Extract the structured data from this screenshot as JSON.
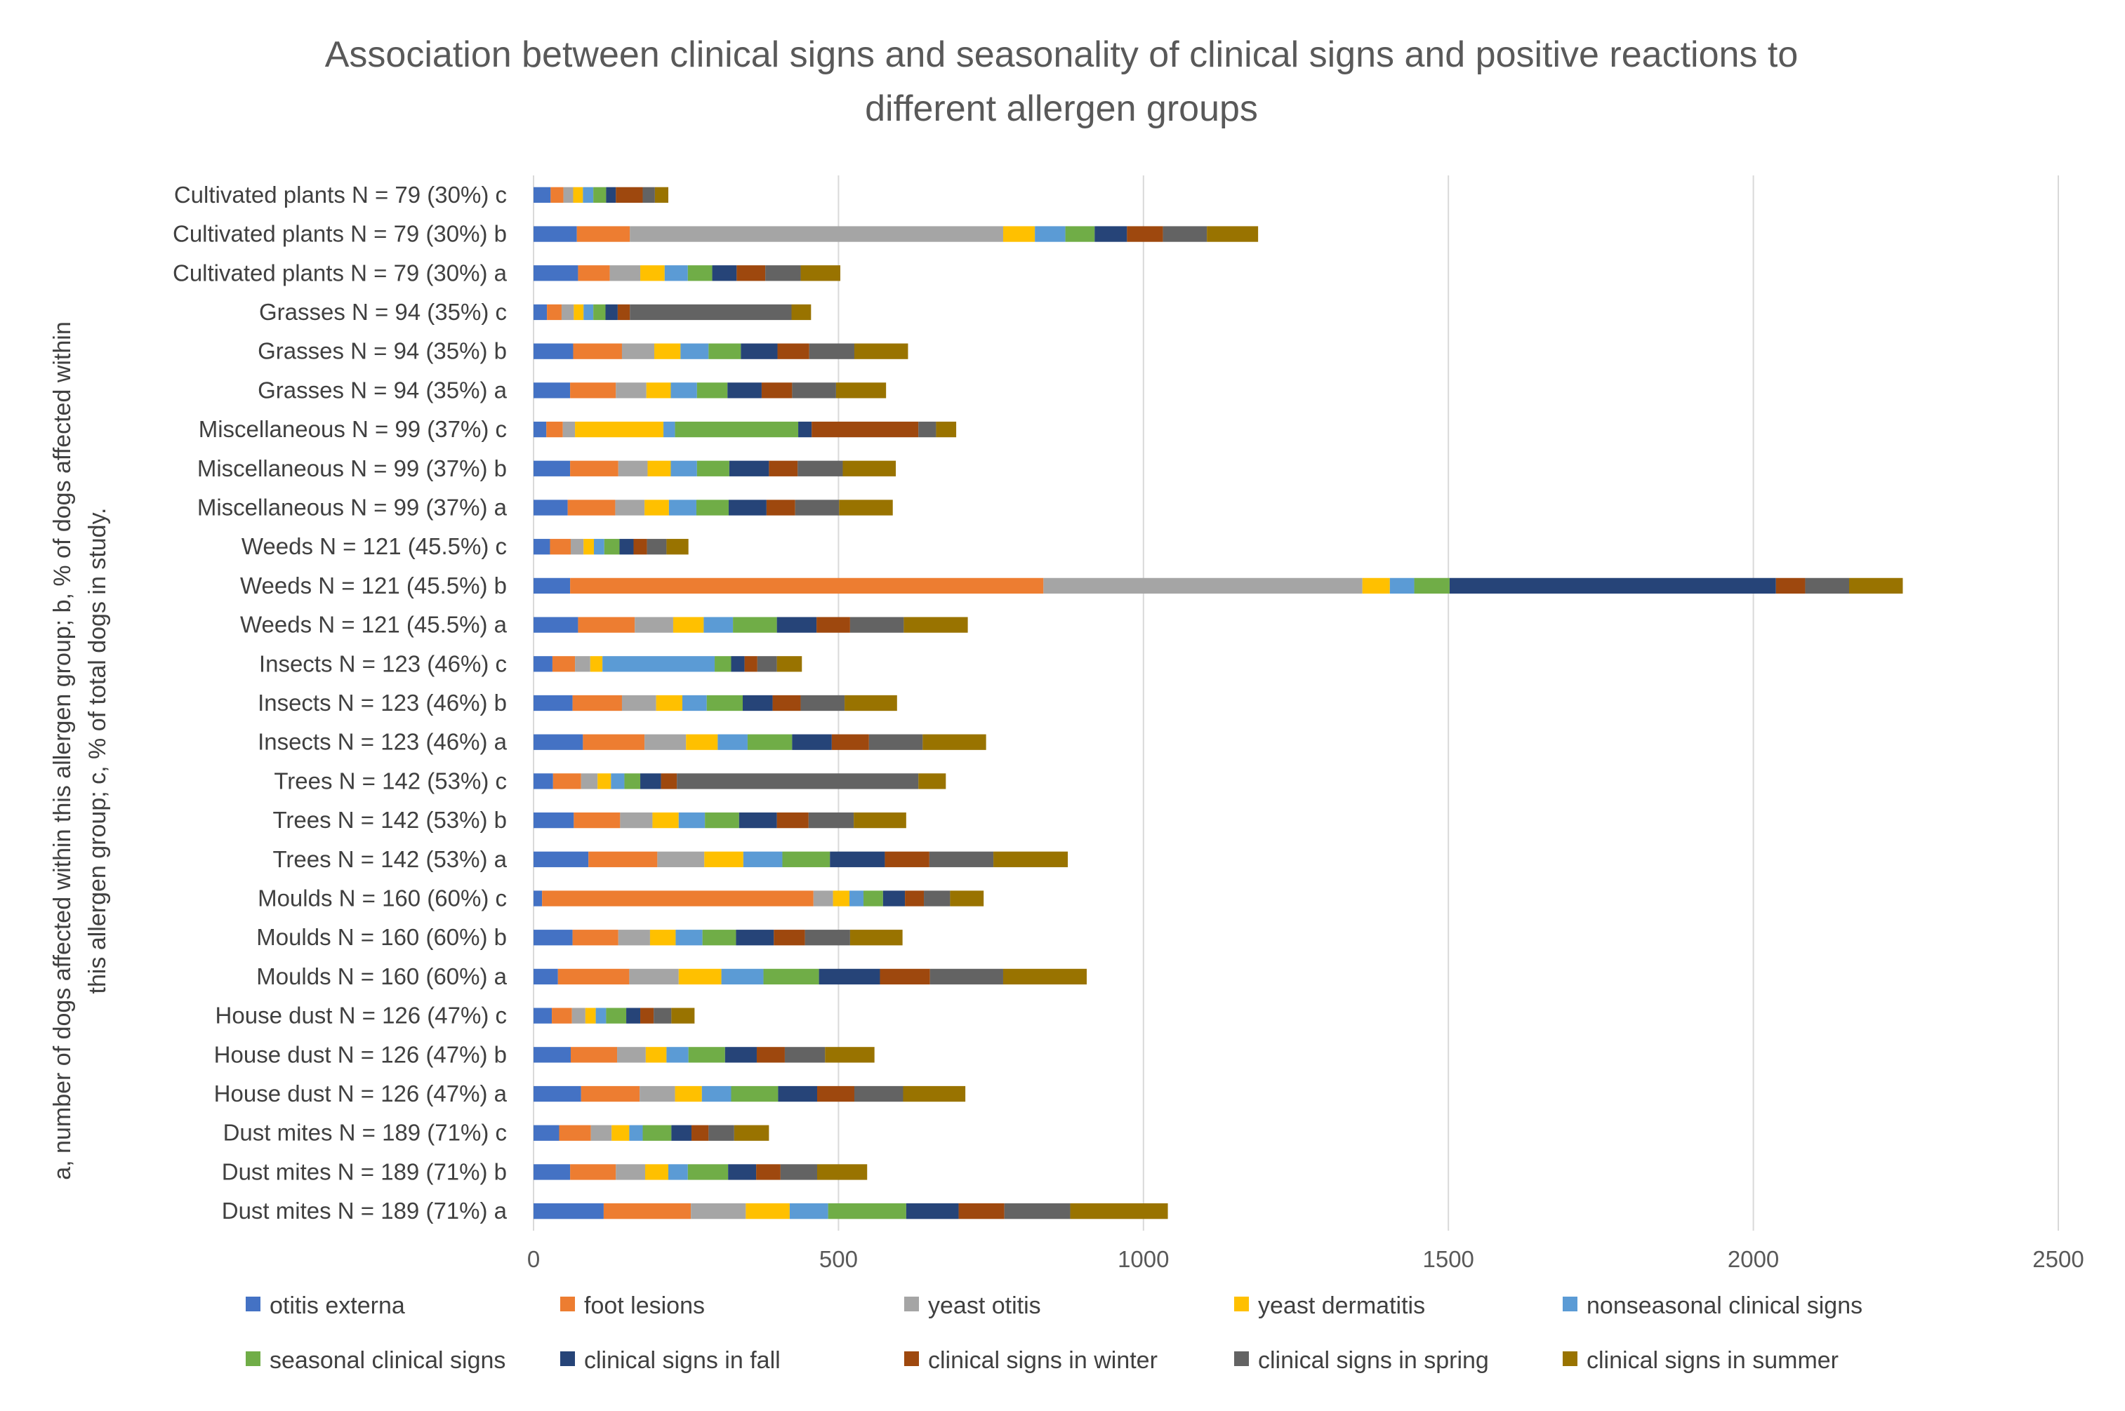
{
  "chart_data": {
    "type": "bar",
    "orientation": "horizontal",
    "stacked": true,
    "title_lines": [
      "Association between clinical signs and seasonality of clinical signs and positive reactions to",
      "different allergen groups"
    ],
    "ylabel_lines": [
      "a, number of dogs affected within this allergen group; b, % of dogs affected within",
      "this allergen group; c, % of total dogs in study."
    ],
    "xlim": [
      0,
      2500
    ],
    "xticks": [
      "0",
      "500",
      "1000",
      "1500",
      "2000",
      "2500"
    ],
    "grid": true,
    "legend_position": "bottom",
    "categories": [
      "Cultivated plants N = 79 (30%) c",
      "Cultivated plants N = 79 (30%) b",
      "Cultivated plants N = 79 (30%) a",
      "Grasses N = 94 (35%) c",
      "Grasses N = 94 (35%) b",
      "Grasses N = 94 (35%) a",
      "Miscellaneous N = 99 (37%) c",
      "Miscellaneous N = 99 (37%) b",
      "Miscellaneous N = 99 (37%) a",
      "Weeds N = 121 (45.5%) c",
      "Weeds N = 121 (45.5%) b",
      "Weeds N = 121 (45.5%) a",
      "Insects N = 123 (46%) c",
      "Insects N = 123 (46%) b",
      "Insects N = 123 (46%) a",
      "Trees N = 142 (53%) c",
      "Trees N = 142 (53%) b",
      "Trees N = 142 (53%) a",
      "Moulds N = 160 (60%) c",
      "Moulds N = 160 (60%) b",
      "Moulds N = 160 (60%) a",
      "House dust N = 126 (47%) c",
      "House dust N = 126 (47%) b",
      "House dust N = 126 (47%) a",
      "Dust mites N = 189 (71%) c",
      "Dust mites N = 189 (71%) b",
      "Dust mites N = 189 (71%) a"
    ],
    "series": [
      {
        "name": "otitis externa",
        "color": "#4472c4",
        "values": [
          28,
          71,
          73,
          22,
          65,
          60,
          21,
          60,
          56,
          27,
          60,
          73,
          31,
          64,
          81,
          32,
          66,
          90,
          14,
          64,
          40,
          30,
          61,
          78,
          42,
          60,
          115
        ]
      },
      {
        "name": "foot lesions",
        "color": "#ed7d31",
        "values": [
          21,
          87,
          52,
          24,
          80,
          75,
          27,
          79,
          78,
          34,
          776,
          93,
          37,
          81,
          101,
          46,
          76,
          113,
          445,
          75,
          117,
          33,
          76,
          96,
          52,
          75,
          143
        ]
      },
      {
        "name": "yeast otitis",
        "color": "#a5a5a5",
        "values": [
          16,
          612,
          50,
          20,
          53,
          50,
          20,
          48,
          48,
          21,
          523,
          63,
          25,
          56,
          68,
          27,
          53,
          77,
          32,
          52,
          81,
          22,
          47,
          58,
          34,
          48,
          90
        ]
      },
      {
        "name": "yeast dermatitis",
        "color": "#ffc000",
        "values": [
          16,
          52,
          40,
          16,
          43,
          40,
          145,
          38,
          40,
          17,
          45,
          50,
          20,
          43,
          52,
          22,
          43,
          64,
          27,
          42,
          70,
          17,
          34,
          44,
          29,
          38,
          72
        ]
      },
      {
        "name": "nonseasonal clinical signs",
        "color": "#5b9bd5",
        "values": [
          17,
          50,
          38,
          16,
          46,
          43,
          19,
          43,
          45,
          17,
          40,
          48,
          184,
          40,
          49,
          22,
          43,
          64,
          23,
          44,
          69,
          17,
          36,
          48,
          22,
          32,
          63
        ]
      },
      {
        "name": "seasonal clinical signs",
        "color": "#70ad47",
        "values": [
          21,
          48,
          40,
          20,
          53,
          50,
          202,
          53,
          53,
          25,
          58,
          72,
          27,
          59,
          73,
          26,
          56,
          78,
          32,
          55,
          91,
          33,
          60,
          77,
          47,
          66,
          128
        ]
      },
      {
        "name": "clinical signs in fall",
        "color": "#264478",
        "values": [
          16,
          53,
          40,
          20,
          60,
          56,
          22,
          65,
          62,
          23,
          535,
          65,
          22,
          49,
          65,
          34,
          62,
          90,
          36,
          62,
          100,
          23,
          52,
          64,
          33,
          46,
          86
        ]
      },
      {
        "name": "clinical signs in winter",
        "color": "#9e480e",
        "values": [
          44,
          59,
          47,
          20,
          52,
          50,
          175,
          47,
          47,
          22,
          48,
          55,
          21,
          46,
          61,
          26,
          52,
          73,
          31,
          51,
          82,
          22,
          46,
          61,
          28,
          40,
          75
        ]
      },
      {
        "name": "clinical signs in spring",
        "color": "#636363",
        "values": [
          20,
          72,
          58,
          265,
          74,
          72,
          29,
          74,
          72,
          32,
          72,
          88,
          32,
          72,
          88,
          396,
          74,
          105,
          43,
          74,
          120,
          29,
          66,
          80,
          42,
          60,
          108
        ]
      },
      {
        "name": "clinical signs in summer",
        "color": "#997300",
        "values": [
          22,
          84,
          65,
          32,
          88,
          82,
          33,
          87,
          88,
          36,
          88,
          105,
          41,
          86,
          104,
          45,
          86,
          122,
          55,
          86,
          137,
          38,
          81,
          102,
          57,
          82,
          160
        ]
      }
    ]
  }
}
